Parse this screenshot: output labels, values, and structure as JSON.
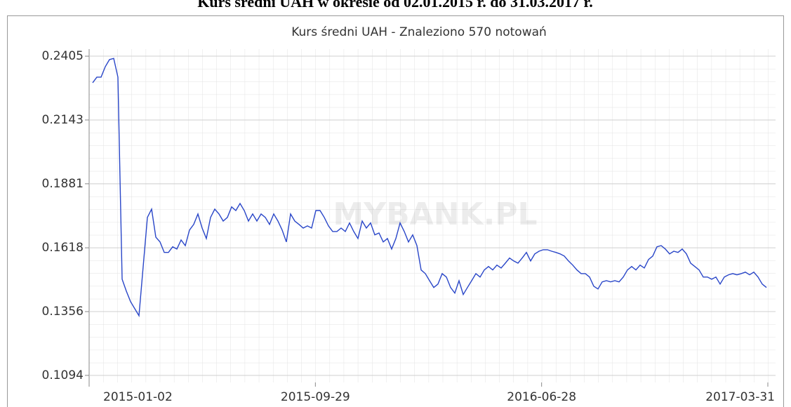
{
  "page_title": "Kurs średni UAH w okresie od 02.01.2015 r. do 31.03.2017 r.",
  "chart_data": {
    "type": "line",
    "title": "Kurs średni UAH - Znaleziono 570 notowań",
    "watermark": "MYBANK.PL",
    "xticks": [
      "2015-01-02",
      "2015-09-29",
      "2016-06-28",
      "2017-03-31"
    ],
    "ylim": [
      0.1065,
      0.2434
    ],
    "yticks": [
      0.1094,
      0.1356,
      0.1618,
      0.1881,
      0.2143,
      0.2405
    ],
    "grid": true,
    "series": [
      {
        "name": "UAH",
        "color": "#2946c8",
        "values": [
          0.2296,
          0.2319,
          0.2319,
          0.2362,
          0.2391,
          0.2396,
          0.2319,
          0.1489,
          0.144,
          0.1397,
          0.1368,
          0.1339,
          0.1541,
          0.1743,
          0.1777,
          0.1662,
          0.1642,
          0.1599,
          0.1599,
          0.1622,
          0.1613,
          0.165,
          0.1627,
          0.1691,
          0.1714,
          0.1757,
          0.1699,
          0.1656,
          0.1743,
          0.1777,
          0.1757,
          0.1728,
          0.1743,
          0.1786,
          0.1771,
          0.18,
          0.1771,
          0.1728,
          0.1757,
          0.1728,
          0.1757,
          0.1743,
          0.1714,
          0.1757,
          0.1728,
          0.1691,
          0.1642,
          0.1757,
          0.1728,
          0.1714,
          0.1699,
          0.1708,
          0.1699,
          0.1771,
          0.1771,
          0.1743,
          0.1708,
          0.1685,
          0.1685,
          0.1699,
          0.1685,
          0.172,
          0.1685,
          0.1656,
          0.1728,
          0.1699,
          0.172,
          0.1671,
          0.1679,
          0.1642,
          0.1656,
          0.1613,
          0.1656,
          0.172,
          0.1685,
          0.1642,
          0.1671,
          0.1627,
          0.1527,
          0.1512,
          0.1483,
          0.1455,
          0.1469,
          0.1512,
          0.1498,
          0.1455,
          0.1432,
          0.1483,
          0.1426,
          0.1455,
          0.1483,
          0.1512,
          0.1498,
          0.1527,
          0.1541,
          0.1527,
          0.1547,
          0.1535,
          0.1555,
          0.1576,
          0.1564,
          0.1555,
          0.1576,
          0.1599,
          0.1564,
          0.1593,
          0.1604,
          0.161,
          0.161,
          0.1604,
          0.1599,
          0.1593,
          0.1584,
          0.1564,
          0.1547,
          0.1527,
          0.1512,
          0.1512,
          0.1498,
          0.146,
          0.1449,
          0.1478,
          0.1483,
          0.1478,
          0.1483,
          0.1478,
          0.1498,
          0.1527,
          0.1541,
          0.1527,
          0.1547,
          0.1535,
          0.157,
          0.1584,
          0.1622,
          0.1627,
          0.1613,
          0.1593,
          0.1604,
          0.1599,
          0.1613,
          0.1593,
          0.1555,
          0.1541,
          0.1527,
          0.1498,
          0.1498,
          0.1489,
          0.1498,
          0.1469,
          0.1498,
          0.1507,
          0.1512,
          0.1507,
          0.1512,
          0.1518,
          0.1507,
          0.1518,
          0.1498,
          0.1469,
          0.1455
        ]
      }
    ]
  }
}
